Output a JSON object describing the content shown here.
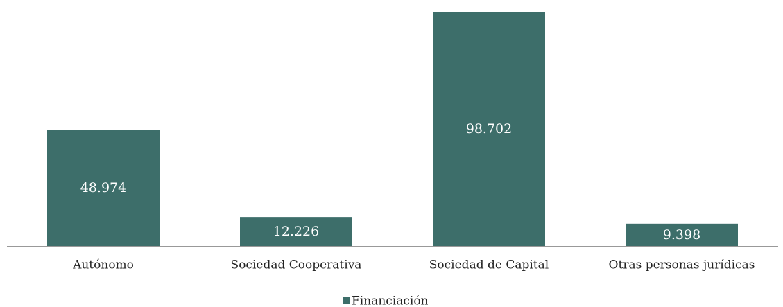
{
  "chart_data": {
    "type": "bar",
    "categories": [
      "Autónomo",
      "Sociedad Cooperativa",
      "Sociedad de Capital",
      "Otras personas jurídicas"
    ],
    "series": [
      {
        "name": "Financiación",
        "color": "#3d6e6a",
        "values": [
          48974,
          12226,
          98702,
          9398
        ],
        "value_labels": [
          "48.974",
          "12.226",
          "98.702",
          "9.398"
        ]
      }
    ]
  }
}
